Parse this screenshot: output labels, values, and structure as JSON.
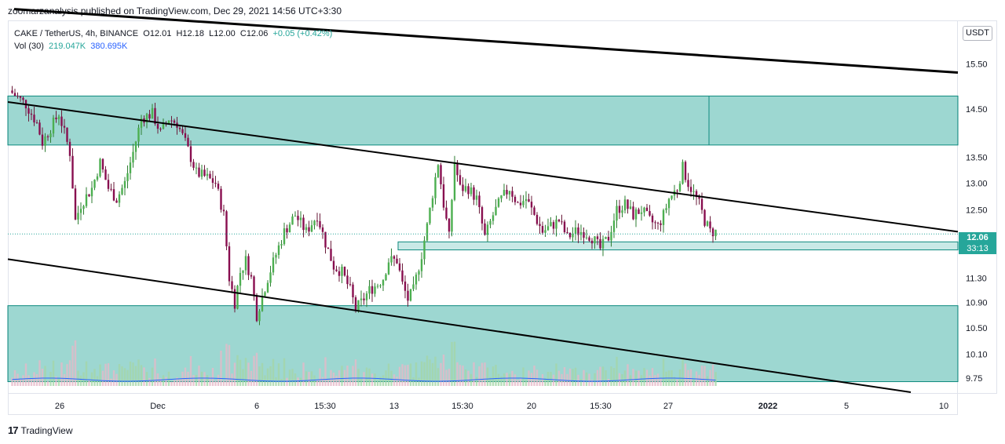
{
  "header": {
    "text": "zoomarzanalysis published on TradingView.com, Dec 29, 2021 14:56 UTC+3:30"
  },
  "legend": {
    "symbol": "CAKE / TetherUS, 4h, BINANCE",
    "open": "O12.01",
    "high": "H12.18",
    "low": "L12.00",
    "close": "C12.06",
    "change": "+0.05 (+0.42%)",
    "vol_label": "Vol (30)",
    "vol_value": "219.047K",
    "vol_ma": "380.695K"
  },
  "price_scale": {
    "currency": "USDT",
    "last_price": "12.06",
    "countdown": "33:13",
    "ticks": [
      "15.50",
      "14.50",
      "13.50",
      "13.00",
      "12.50",
      "11.30",
      "10.90",
      "10.50",
      "10.10",
      "9.75"
    ]
  },
  "time_scale": {
    "labels": [
      "26",
      "Dec",
      "6",
      "15:30",
      "13",
      "15:30",
      "20",
      "15:30",
      "27",
      "2022",
      "5",
      "10"
    ]
  },
  "footer": {
    "brand": "TradingView",
    "logo": "17"
  },
  "colors": {
    "up": "#26a69a",
    "down": "#ef5350",
    "candle_up_body": "#4caf50",
    "candle_down_body": "#880e4f",
    "zone_fill": "#26a69a",
    "volume_ma": "#2962ff",
    "price_tag": "#26a69a"
  },
  "chart_data": {
    "type": "candlestick",
    "symbol": "CAKE / TetherUS",
    "timeframe": "4h",
    "y_axis": {
      "scale": "log",
      "ylim": [
        9.55,
        16.6
      ]
    },
    "x_axis": {
      "labels": [
        "26",
        "Dec",
        "6",
        "15:30",
        "13",
        "15:30",
        "20",
        "15:30",
        "27",
        "2022",
        "5",
        "10"
      ]
    },
    "close_path": [
      [
        0,
        14.9
      ],
      [
        6,
        14.6
      ],
      [
        10,
        14.2
      ],
      [
        12,
        13.8
      ],
      [
        15,
        14.1
      ],
      [
        18,
        14.4
      ],
      [
        22,
        13.6
      ],
      [
        24,
        12.3
      ],
      [
        26,
        12.6
      ],
      [
        30,
        12.9
      ],
      [
        33,
        13.4
      ],
      [
        36,
        12.9
      ],
      [
        39,
        12.7
      ],
      [
        42,
        13.0
      ],
      [
        45,
        13.6
      ],
      [
        48,
        14.3
      ],
      [
        52,
        14.4
      ],
      [
        55,
        14.0
      ],
      [
        58,
        14.3
      ],
      [
        61,
        14.2
      ],
      [
        64,
        13.8
      ],
      [
        68,
        13.2
      ],
      [
        72,
        13.1
      ],
      [
        75,
        13.0
      ],
      [
        78,
        12.4
      ],
      [
        80,
        11.3
      ],
      [
        82,
        10.9
      ],
      [
        84,
        11.4
      ],
      [
        86,
        11.6
      ],
      [
        88,
        11.3
      ],
      [
        90,
        10.7
      ],
      [
        92,
        11.0
      ],
      [
        94,
        11.3
      ],
      [
        97,
        11.7
      ],
      [
        100,
        12.1
      ],
      [
        104,
        12.4
      ],
      [
        108,
        12.1
      ],
      [
        112,
        12.4
      ],
      [
        115,
        11.9
      ],
      [
        118,
        11.5
      ],
      [
        121,
        11.4
      ],
      [
        124,
        11.1
      ],
      [
        126,
        10.8
      ],
      [
        128,
        10.9
      ],
      [
        131,
        11.1
      ],
      [
        134,
        11.2
      ],
      [
        136,
        11.3
      ],
      [
        138,
        11.6
      ],
      [
        141,
        11.6
      ],
      [
        143,
        11.2
      ],
      [
        145,
        10.95
      ],
      [
        147,
        11.1
      ],
      [
        150,
        11.7
      ],
      [
        152,
        12.2
      ],
      [
        154,
        12.8
      ],
      [
        156,
        13.4
      ],
      [
        158,
        12.6
      ],
      [
        160,
        12.0
      ],
      [
        162,
        13.4
      ],
      [
        164,
        12.9
      ],
      [
        167,
        12.9
      ],
      [
        170,
        12.7
      ],
      [
        173,
        12.0
      ],
      [
        176,
        12.4
      ],
      [
        179,
        12.7
      ],
      [
        182,
        12.9
      ],
      [
        185,
        12.6
      ],
      [
        188,
        12.7
      ],
      [
        191,
        12.4
      ],
      [
        194,
        12.1
      ],
      [
        197,
        12.2
      ],
      [
        200,
        12.3
      ],
      [
        203,
        12.0
      ],
      [
        206,
        12.1
      ],
      [
        209,
        12.1
      ],
      [
        212,
        12.0
      ],
      [
        215,
        11.8
      ],
      [
        218,
        12.0
      ],
      [
        221,
        12.5
      ],
      [
        224,
        12.6
      ],
      [
        227,
        12.4
      ],
      [
        230,
        12.5
      ],
      [
        233,
        12.3
      ],
      [
        236,
        12.2
      ],
      [
        238,
        12.4
      ],
      [
        240,
        12.7
      ],
      [
        243,
        12.9
      ],
      [
        245,
        13.3
      ],
      [
        247,
        13.0
      ],
      [
        249,
        12.8
      ],
      [
        251,
        12.6
      ],
      [
        253,
        12.3
      ],
      [
        255,
        12.1
      ],
      [
        257,
        12.1
      ]
    ],
    "zones": [
      {
        "name": "resistance-zone",
        "from": 13.75,
        "to": 14.78
      },
      {
        "name": "mid-support-zone",
        "from": 11.78,
        "to": 11.92
      },
      {
        "name": "support-zone",
        "from": 9.7,
        "to": 10.85
      }
    ],
    "channel": {
      "upper": [
        [
          0,
          15.36
        ],
        [
          257,
          15.36
        ]
      ],
      "lines": [
        {
          "name": "upper-trendline",
          "start": [
            18,
            16.8
          ],
          "end": [
            1220,
            15.3
          ]
        },
        {
          "name": "middle-trendline",
          "start": [
            10,
            14.65
          ],
          "end": [
            1220,
            12.1
          ]
        },
        {
          "name": "lower-trendline",
          "start": [
            10,
            11.62
          ],
          "end": [
            1160,
            9.55
          ]
        }
      ]
    },
    "last_price": 12.06
  }
}
